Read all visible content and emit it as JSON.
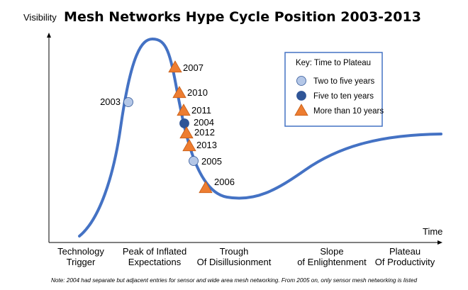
{
  "colors": {
    "curve": "#4472C4",
    "two_to_five": "#B4C7E7",
    "five_to_ten": "#2F5597",
    "more_than_ten": "#ED7D31",
    "key_border": "#4472C4"
  },
  "chart_data": {
    "type": "scatter",
    "title": "Mesh Networks Hype Cycle Position 2003-2013",
    "ylabel": "Visibility",
    "xlabel": "Time",
    "phases": [
      "Technology Trigger",
      "Peak of Inflated Expectations",
      "Trough Of Disillusionment",
      "Slope of Enlightenment",
      "Plateau Of Productivity"
    ],
    "legend": {
      "title": "Key: Time to Plateau",
      "position": "top-right",
      "entries": [
        {
          "label": "Two to five years",
          "marker": "circle",
          "color_key": "two_to_five"
        },
        {
          "label": "Five to ten years",
          "marker": "circle",
          "color_key": "five_to_ten"
        },
        {
          "label": "More than 10 years",
          "marker": "triangle",
          "color_key": "more_than_ten"
        }
      ]
    },
    "points": [
      {
        "year": "2003",
        "category": "Two to five years"
      },
      {
        "year": "2007",
        "category": "More than 10 years"
      },
      {
        "year": "2010",
        "category": "More than 10 years"
      },
      {
        "year": "2011",
        "category": "More than 10 years"
      },
      {
        "year": "2004",
        "category": "Five to ten years"
      },
      {
        "year": "2012",
        "category": "More than 10 years"
      },
      {
        "year": "2013",
        "category": "More than 10 years"
      },
      {
        "year": "2005",
        "category": "Two to five years"
      },
      {
        "year": "2006",
        "category": "More than 10 years"
      }
    ],
    "note": "Note: 2004 had separate but adjacent entries for sensor and wide area mesh networking. From 2005 on, only sensor mesh networking is listed"
  }
}
